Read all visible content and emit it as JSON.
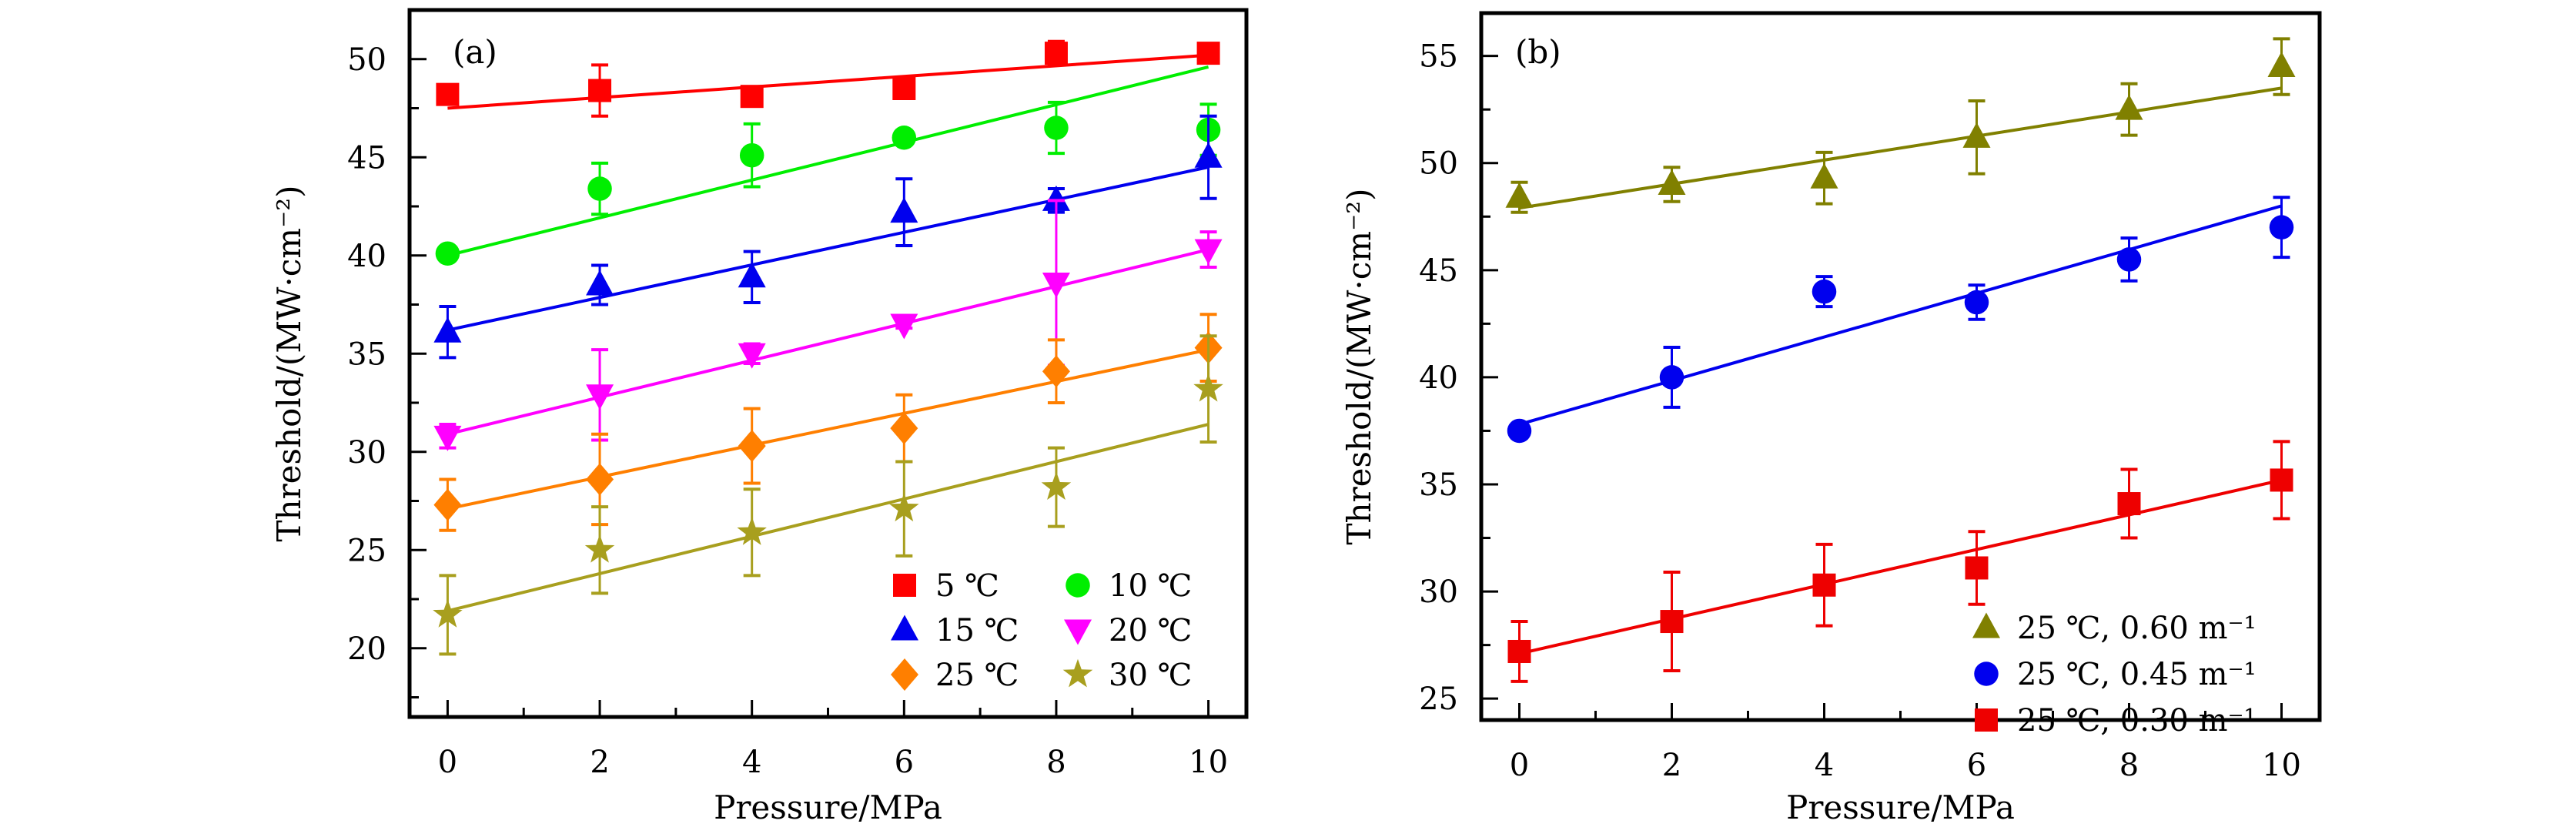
{
  "chart_data": [
    {
      "type": "scatter",
      "panel_label": "(a)",
      "xlabel": "Pressure/MPa",
      "ylabel": "Threshold/(MW·cm⁻²)",
      "xlim": [
        -0.5,
        10.5
      ],
      "ylim": [
        16.5,
        52.5
      ],
      "xticks": [
        0,
        2,
        4,
        6,
        8,
        10
      ],
      "yticks": [
        20,
        25,
        30,
        35,
        40,
        45,
        50
      ],
      "grid": false,
      "legend_position": "bottom-right",
      "legend_columns": 2,
      "x": [
        0,
        2,
        4,
        6,
        8,
        10
      ],
      "series": [
        {
          "name": "5 ℃",
          "color": "#ff0000",
          "marker": "square",
          "values": [
            48.2,
            48.4,
            48.1,
            48.5,
            50.3,
            50.3
          ],
          "errors": [
            0.3,
            1.3,
            0.3,
            0.4,
            0.6,
            0.4
          ],
          "fit": [
            47.5,
            50.2
          ]
        },
        {
          "name": "10 ℃",
          "color": "#00ee00",
          "marker": "circle",
          "values": [
            40.1,
            43.4,
            45.1,
            46.0,
            46.5,
            46.4
          ],
          "errors": [
            0.2,
            1.3,
            1.6,
            0.2,
            1.3,
            1.3
          ],
          "fit": [
            40.0,
            49.6
          ]
        },
        {
          "name": "15 ℃",
          "color": "#0000ee",
          "marker": "triangle-up",
          "values": [
            36.1,
            38.5,
            38.9,
            42.2,
            42.8,
            45.0
          ],
          "errors": [
            1.3,
            1.0,
            1.3,
            1.7,
            0.6,
            2.1
          ],
          "fit": [
            36.2,
            44.5
          ]
        },
        {
          "name": "20 ℃",
          "color": "#ff00ff",
          "marker": "triangle-down",
          "values": [
            30.8,
            32.9,
            35.0,
            36.5,
            38.6,
            40.3
          ],
          "errors": [
            0.6,
            2.3,
            0.5,
            0.2,
            4.2,
            0.9
          ],
          "fit": [
            30.9,
            40.3
          ]
        },
        {
          "name": "25 ℃",
          "color": "#ff7f00",
          "marker": "diamond",
          "values": [
            27.3,
            28.6,
            30.3,
            31.2,
            34.1,
            35.3
          ],
          "errors": [
            1.3,
            2.3,
            1.9,
            1.7,
            1.6,
            1.7
          ],
          "fit": [
            27.1,
            35.2
          ]
        },
        {
          "name": "30 ℃",
          "color": "#a89f1e",
          "marker": "star",
          "values": [
            21.7,
            25.0,
            25.9,
            27.1,
            28.2,
            33.2
          ],
          "errors": [
            2.0,
            2.2,
            2.2,
            2.4,
            2.0,
            2.7
          ],
          "fit": [
            21.9,
            31.4
          ]
        }
      ]
    },
    {
      "type": "scatter",
      "panel_label": "(b)",
      "xlabel": "Pressure/MPa",
      "ylabel": "Threshold/(MW·cm⁻²)",
      "xlim": [
        -0.5,
        10.5
      ],
      "ylim": [
        24,
        57
      ],
      "xticks": [
        0,
        2,
        4,
        6,
        8,
        10
      ],
      "yticks": [
        25,
        30,
        35,
        40,
        45,
        50,
        55
      ],
      "grid": false,
      "legend_position": "bottom-right",
      "legend_columns": 1,
      "x": [
        0,
        2,
        4,
        6,
        8,
        10
      ],
      "series": [
        {
          "name": "25 ℃, 0.60 m⁻¹",
          "color": "#808000",
          "marker": "triangle-up",
          "values": [
            48.4,
            49.0,
            49.3,
            51.2,
            52.5,
            54.5
          ],
          "errors": [
            0.7,
            0.8,
            1.2,
            1.7,
            1.2,
            1.3
          ],
          "fit": [
            47.9,
            53.5
          ]
        },
        {
          "name": "25 ℃, 0.45 m⁻¹",
          "color": "#0000ee",
          "marker": "circle",
          "values": [
            37.5,
            40.0,
            44.0,
            43.5,
            45.5,
            47.0
          ],
          "errors": [
            0.3,
            1.4,
            0.7,
            0.8,
            1.0,
            1.4
          ],
          "fit": [
            37.8,
            48.0
          ]
        },
        {
          "name": "25 ℃, 0.30 m⁻¹",
          "color": "#ee0000",
          "marker": "square",
          "values": [
            27.2,
            28.6,
            30.3,
            31.1,
            34.1,
            35.2
          ],
          "errors": [
            1.4,
            2.3,
            1.9,
            1.7,
            1.6,
            1.8
          ],
          "fit": [
            27.1,
            35.2
          ]
        }
      ]
    }
  ]
}
